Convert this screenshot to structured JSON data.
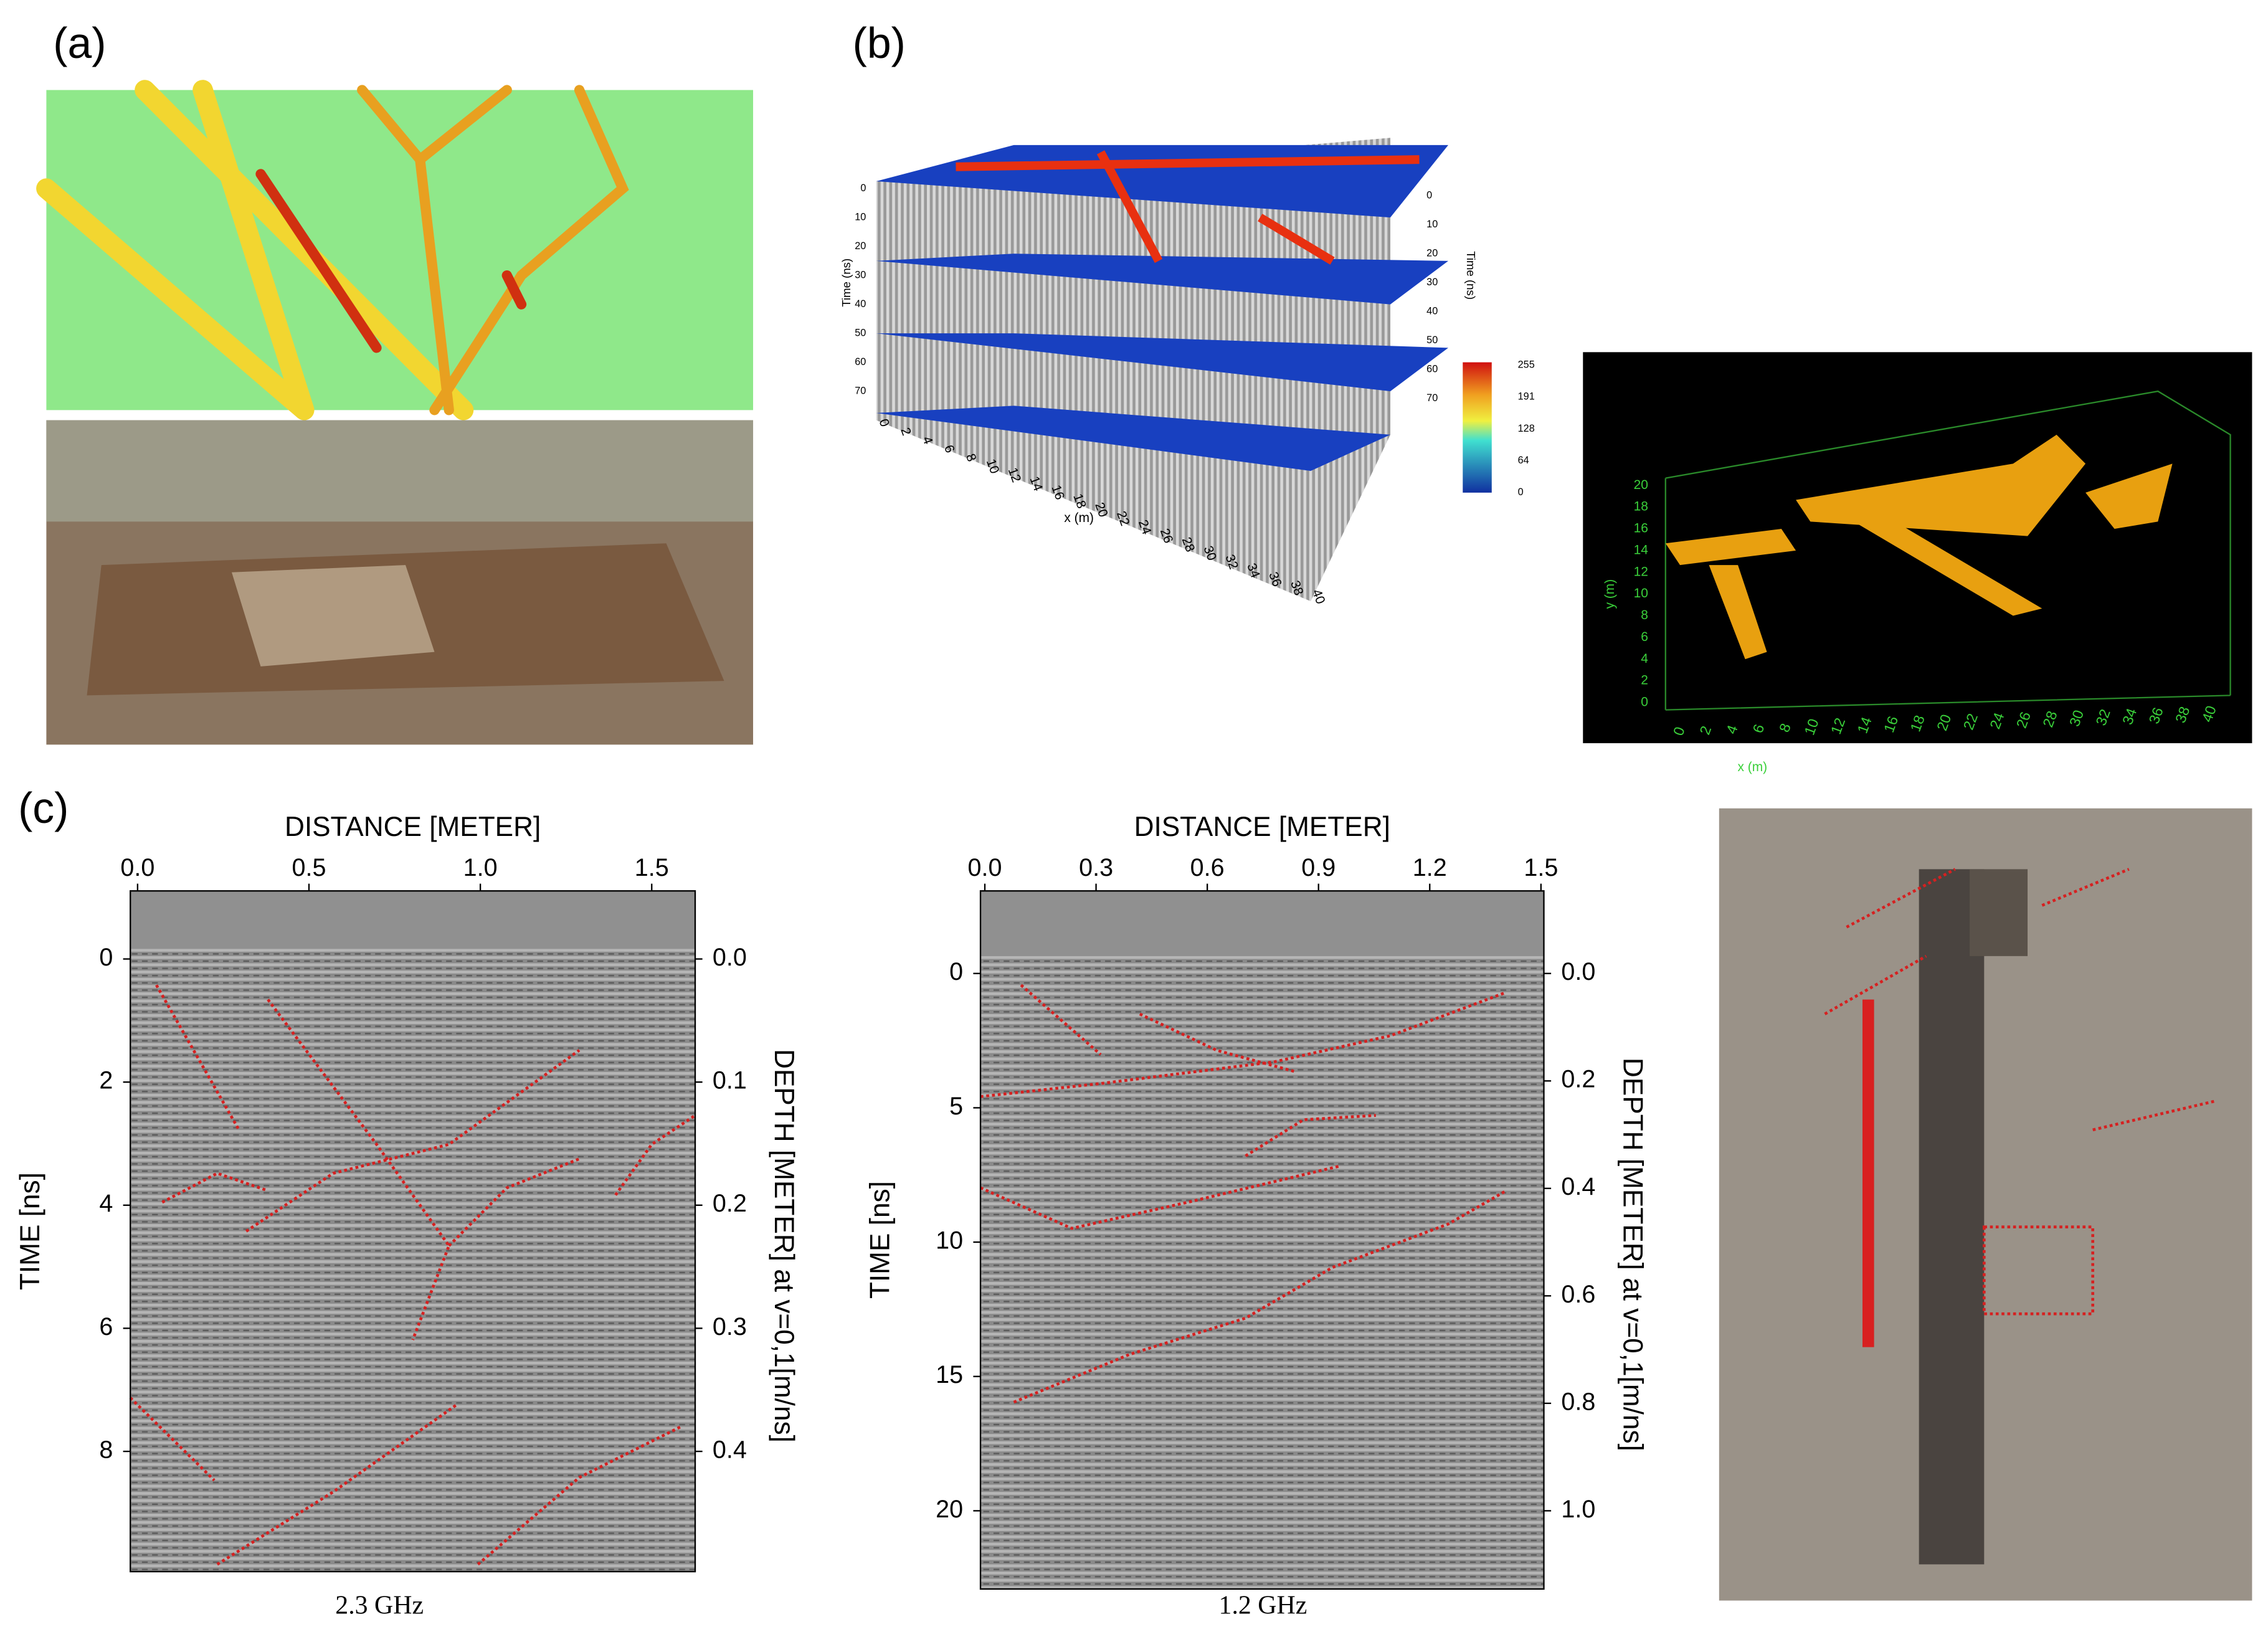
{
  "panel_a": {
    "label": "(a)"
  },
  "panel_b": {
    "label": "(b)",
    "cube": {
      "time_axis_label": "Time (ns)",
      "time_axis_label_right": "Time (ns)",
      "x_axis_label": "x (m)",
      "time_ticks": [
        "0",
        "10",
        "20",
        "30",
        "40",
        "50",
        "60",
        "70"
      ],
      "x_ticks": [
        "0",
        "2",
        "4",
        "6",
        "8",
        "10",
        "12",
        "14",
        "16",
        "18",
        "20",
        "22",
        "24",
        "26",
        "28",
        "30",
        "32",
        "34",
        "36",
        "38",
        "40"
      ],
      "colorbar_ticks": [
        "255",
        "191",
        "128",
        "64",
        "0"
      ]
    },
    "volume": {
      "y_axis_label": "y (m)",
      "x_axis_label": "x (m)",
      "y_ticks": [
        "0",
        "2",
        "4",
        "6",
        "8",
        "10",
        "12",
        "14",
        "16",
        "18",
        "20"
      ],
      "x_ticks": [
        "0",
        "2",
        "4",
        "6",
        "8",
        "10",
        "12",
        "14",
        "16",
        "18",
        "20",
        "22",
        "24",
        "26",
        "28",
        "30",
        "32",
        "34",
        "36",
        "38",
        "40"
      ]
    }
  },
  "panel_c": {
    "label": "(c)",
    "radargrams": [
      {
        "x_axis_label": "DISTANCE [METER]",
        "y_axis_label": "TIME [ns]",
        "y2_axis_label": "DEPTH [METER] at v=0,1[m/ns]",
        "x_ticks": [
          "0.0",
          "0.5",
          "1.0",
          "1.5"
        ],
        "y_ticks": [
          "0",
          "2",
          "4",
          "6",
          "8"
        ],
        "y2_ticks": [
          "0.0",
          "0.1",
          "0.2",
          "0.3",
          "0.4"
        ],
        "caption": "2.3 GHz"
      },
      {
        "x_axis_label": "DISTANCE [METER]",
        "y_axis_label": "TIME [ns]",
        "y2_axis_label": "DEPTH [METER] at v=0,1[m/ns]",
        "x_ticks": [
          "0.0",
          "0.3",
          "0.6",
          "0.9",
          "1.2",
          "1.5"
        ],
        "y_ticks": [
          "0",
          "5",
          "10",
          "15",
          "20"
        ],
        "y2_ticks": [
          "0.0",
          "0.2",
          "0.4",
          "0.6",
          "0.8",
          "1.0"
        ],
        "caption": "1.2 GHz"
      }
    ]
  }
}
